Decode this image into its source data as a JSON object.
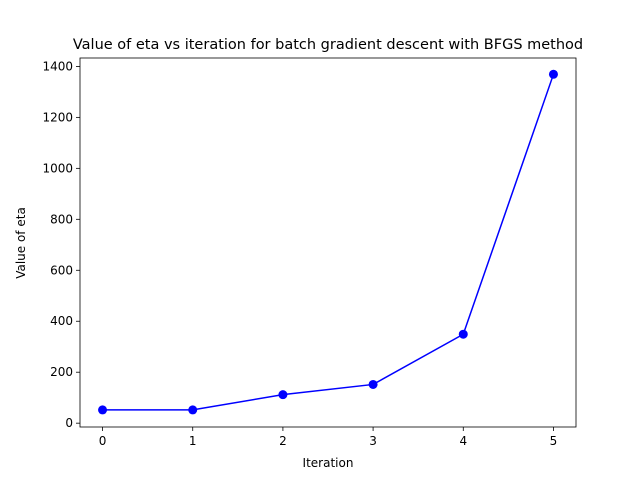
{
  "chart_data": {
    "type": "line",
    "title": "Value of eta vs iteration for batch gradient descent with BFGS method",
    "xlabel": "Iteration",
    "ylabel": "Value of eta",
    "x": [
      0,
      1,
      2,
      3,
      4,
      5
    ],
    "series": [
      {
        "values": [
          52,
          52,
          112,
          152,
          349,
          1369
        ],
        "color": "#0000ff",
        "marker": "circle"
      }
    ],
    "xlim": [
      -0.25,
      5.25
    ],
    "ylim": [
      -15,
      1433
    ],
    "xticks": [
      0,
      1,
      2,
      3,
      4,
      5
    ],
    "yticks": [
      0,
      200,
      400,
      600,
      800,
      1000,
      1200,
      1400
    ],
    "grid": false,
    "legend": "none"
  }
}
